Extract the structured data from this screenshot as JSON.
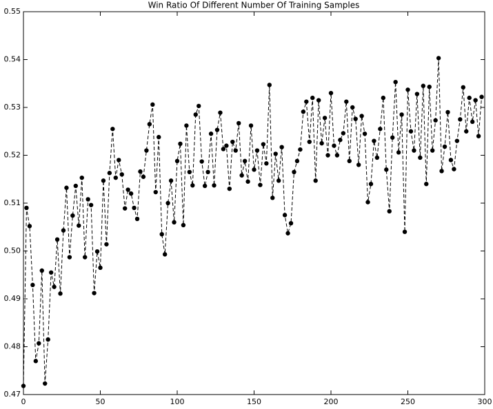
{
  "chart_data": {
    "type": "line",
    "title": "Win Ratio Of Different Number Of Training Samples",
    "x": [
      0,
      2,
      4,
      6,
      8,
      10,
      12,
      14,
      16,
      18,
      20,
      22,
      24,
      26,
      28,
      30,
      32,
      34,
      36,
      38,
      40,
      42,
      44,
      46,
      48,
      50,
      52,
      54,
      56,
      58,
      60,
      62,
      64,
      66,
      68,
      70,
      72,
      74,
      76,
      78,
      80,
      82,
      84,
      86,
      88,
      90,
      92,
      94,
      96,
      98,
      100,
      102,
      104,
      106,
      108,
      110,
      112,
      114,
      116,
      118,
      120,
      122,
      124,
      126,
      128,
      130,
      132,
      134,
      136,
      138,
      140,
      142,
      144,
      146,
      148,
      150,
      152,
      154,
      156,
      158,
      160,
      162,
      164,
      166,
      168,
      170,
      172,
      174,
      176,
      178,
      180,
      182,
      184,
      186,
      188,
      190,
      192,
      194,
      196,
      198,
      200,
      202,
      204,
      206,
      208,
      210,
      212,
      214,
      216,
      218,
      220,
      222,
      224,
      226,
      228,
      230,
      232,
      234,
      236,
      238,
      240,
      242,
      244,
      246,
      248,
      250,
      252,
      254,
      256,
      258,
      260,
      262,
      264,
      266,
      268,
      270,
      272,
      274,
      276,
      278,
      280,
      282,
      284,
      286,
      288,
      290,
      292,
      294,
      296,
      298
    ],
    "series": [
      {
        "color": "#000000",
        "values": [
          0.4718,
          0.509,
          0.5052,
          0.4929,
          0.477,
          0.4807,
          0.4959,
          0.4723,
          0.4815,
          0.4955,
          0.4925,
          0.5024,
          0.4911,
          0.5043,
          0.5132,
          0.4987,
          0.5074,
          0.5136,
          0.5053,
          0.5153,
          0.4987,
          0.5108,
          0.5096,
          0.4912,
          0.4999,
          0.4965,
          0.5147,
          0.5014,
          0.5163,
          0.5255,
          0.5153,
          0.519,
          0.516,
          0.5089,
          0.5128,
          0.512,
          0.509,
          0.5067,
          0.5166,
          0.5155,
          0.521,
          0.5265,
          0.5306,
          0.5123,
          0.5238,
          0.5035,
          0.4993,
          0.51,
          0.5147,
          0.506,
          0.5188,
          0.5224,
          0.5054,
          0.5262,
          0.5165,
          0.5137,
          0.5285,
          0.5303,
          0.5187,
          0.5136,
          0.5165,
          0.5245,
          0.5137,
          0.5253,
          0.5289,
          0.5213,
          0.522,
          0.513,
          0.5228,
          0.521,
          0.5267,
          0.5158,
          0.5188,
          0.5145,
          0.5262,
          0.517,
          0.521,
          0.5138,
          0.5223,
          0.5183,
          0.5347,
          0.5111,
          0.5203,
          0.5147,
          0.5217,
          0.5075,
          0.5037,
          0.5058,
          0.5165,
          0.5188,
          0.5212,
          0.5291,
          0.5312,
          0.5228,
          0.532,
          0.5147,
          0.5315,
          0.5225,
          0.5278,
          0.52,
          0.533,
          0.522,
          0.52,
          0.5232,
          0.5246,
          0.5312,
          0.5188,
          0.53,
          0.5276,
          0.518,
          0.5282,
          0.5245,
          0.5102,
          0.514,
          0.523,
          0.5195,
          0.5255,
          0.532,
          0.517,
          0.5083,
          0.5237,
          0.5353,
          0.5206,
          0.5285,
          0.504,
          0.5337,
          0.525,
          0.521,
          0.5328,
          0.5195,
          0.5345,
          0.514,
          0.5343,
          0.521,
          0.5273,
          0.5403,
          0.5167,
          0.5218,
          0.529,
          0.519,
          0.5171,
          0.523,
          0.5275,
          0.5342,
          0.525,
          0.532,
          0.527,
          0.5315,
          0.524,
          0.5322
        ]
      }
    ],
    "xlim": [
      0,
      300
    ],
    "xticks": [
      0,
      50,
      100,
      150,
      200,
      250,
      300
    ],
    "ylim": [
      0.47,
      0.55
    ],
    "yticks": [
      0.47,
      0.48,
      0.49,
      {
        "value": 0.5,
        "label": "0.50"
      },
      0.51,
      0.52,
      0.53,
      0.54,
      0.55
    ]
  }
}
